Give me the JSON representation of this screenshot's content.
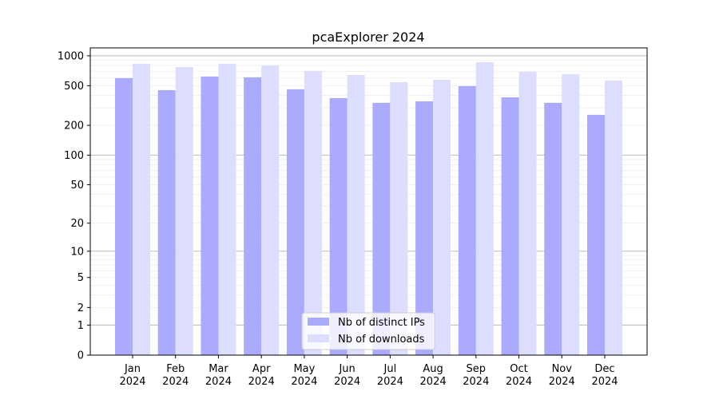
{
  "chart_data": {
    "type": "bar",
    "title": "pcaExplorer 2024",
    "xlabel": "",
    "ylabel": "",
    "yscale": "log(1+y)",
    "ylim": [
      0,
      1200
    ],
    "yticks": [
      0,
      1,
      2,
      5,
      10,
      20,
      50,
      100,
      200,
      500,
      1000
    ],
    "grid": true,
    "legend_position": "bottom-center",
    "categories": [
      [
        "Jan",
        "2024"
      ],
      [
        "Feb",
        "2024"
      ],
      [
        "Mar",
        "2024"
      ],
      [
        "Apr",
        "2024"
      ],
      [
        "May",
        "2024"
      ],
      [
        "Jun",
        "2024"
      ],
      [
        "Jul",
        "2024"
      ],
      [
        "Aug",
        "2024"
      ],
      [
        "Sep",
        "2024"
      ],
      [
        "Oct",
        "2024"
      ],
      [
        "Nov",
        "2024"
      ],
      [
        "Dec",
        "2024"
      ]
    ],
    "series": [
      {
        "name": "Nb of distinct IPs",
        "color": "#aaaaff",
        "values": [
          596,
          452,
          619,
          608,
          461,
          376,
          337,
          349,
          496,
          383,
          337,
          255
        ]
      },
      {
        "name": "Nb of downloads",
        "color": "#ddddff",
        "values": [
          832,
          772,
          832,
          801,
          704,
          642,
          544,
          575,
          862,
          691,
          654,
          564
        ]
      }
    ]
  }
}
